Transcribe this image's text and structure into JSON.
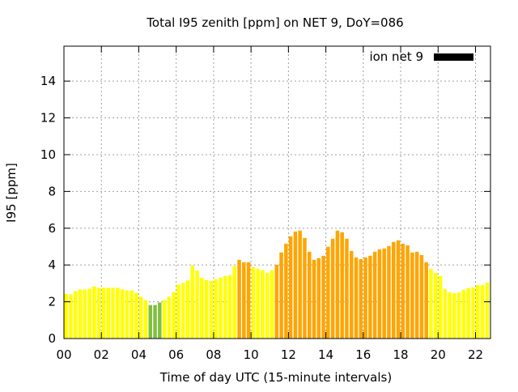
{
  "chart_data": {
    "type": "bar",
    "title": "Total I95 zenith [ppm] on NET 9, DoY=086",
    "xlabel": "Time of day UTC (15-minute intervals)",
    "ylabel": "I95 [ppm]",
    "xlim": [
      0,
      22.8
    ],
    "ylim": [
      0,
      15.9
    ],
    "grid": true,
    "x_interval_hours": 0.25,
    "xticks": [
      "00",
      "02",
      "04",
      "06",
      "08",
      "10",
      "12",
      "14",
      "16",
      "18",
      "20",
      "22"
    ],
    "yticks": [
      "0",
      "2",
      "4",
      "6",
      "8",
      "10",
      "12",
      "14"
    ],
    "legend": {
      "label": "ion net 9",
      "placement": "top-right",
      "color": "#000000"
    },
    "colors": {
      "low": "#80c040",
      "mid": "#ffff00",
      "high": "#ffa500"
    },
    "values": [
      2.43,
      2.4,
      2.58,
      2.67,
      2.67,
      2.71,
      2.84,
      2.76,
      2.76,
      2.76,
      2.76,
      2.76,
      2.67,
      2.62,
      2.62,
      2.49,
      2.27,
      2.09,
      1.82,
      1.82,
      1.96,
      2.09,
      2.27,
      2.53,
      2.93,
      3.02,
      3.16,
      3.96,
      3.7,
      3.3,
      3.18,
      3.13,
      3.22,
      3.31,
      3.4,
      3.44,
      3.93,
      4.28,
      4.15,
      4.15,
      3.88,
      3.79,
      3.71,
      3.57,
      3.71,
      4.01,
      4.68,
      5.16,
      5.56,
      5.82,
      5.87,
      5.47,
      4.72,
      4.28,
      4.37,
      4.5,
      4.99,
      5.43,
      5.87,
      5.78,
      5.43,
      4.76,
      4.41,
      4.32,
      4.41,
      4.5,
      4.72,
      4.85,
      4.9,
      5.03,
      5.25,
      5.34,
      5.16,
      5.07,
      4.68,
      4.72,
      4.54,
      4.15,
      3.79,
      3.57,
      3.4,
      2.69,
      2.51,
      2.47,
      2.51,
      2.65,
      2.74,
      2.78,
      2.91,
      2.91,
      3.04,
      3.09
    ],
    "categories_color": [
      "mid",
      "mid",
      "mid",
      "mid",
      "mid",
      "mid",
      "mid",
      "mid",
      "mid",
      "mid",
      "mid",
      "mid",
      "mid",
      "mid",
      "mid",
      "mid",
      "mid",
      "mid",
      "low",
      "low",
      "low",
      "mid",
      "mid",
      "mid",
      "mid",
      "mid",
      "mid",
      "mid",
      "mid",
      "mid",
      "mid",
      "mid",
      "mid",
      "mid",
      "mid",
      "mid",
      "mid",
      "high",
      "high",
      "high",
      "mid",
      "mid",
      "mid",
      "mid",
      "mid",
      "high",
      "high",
      "high",
      "high",
      "high",
      "high",
      "high",
      "high",
      "high",
      "high",
      "high",
      "high",
      "high",
      "high",
      "high",
      "high",
      "high",
      "high",
      "high",
      "high",
      "high",
      "high",
      "high",
      "high",
      "high",
      "high",
      "high",
      "high",
      "high",
      "high",
      "high",
      "high",
      "high",
      "mid",
      "mid",
      "mid",
      "mid",
      "mid",
      "mid",
      "mid",
      "mid",
      "mid",
      "mid",
      "mid",
      "mid",
      "mid",
      "mid"
    ]
  }
}
